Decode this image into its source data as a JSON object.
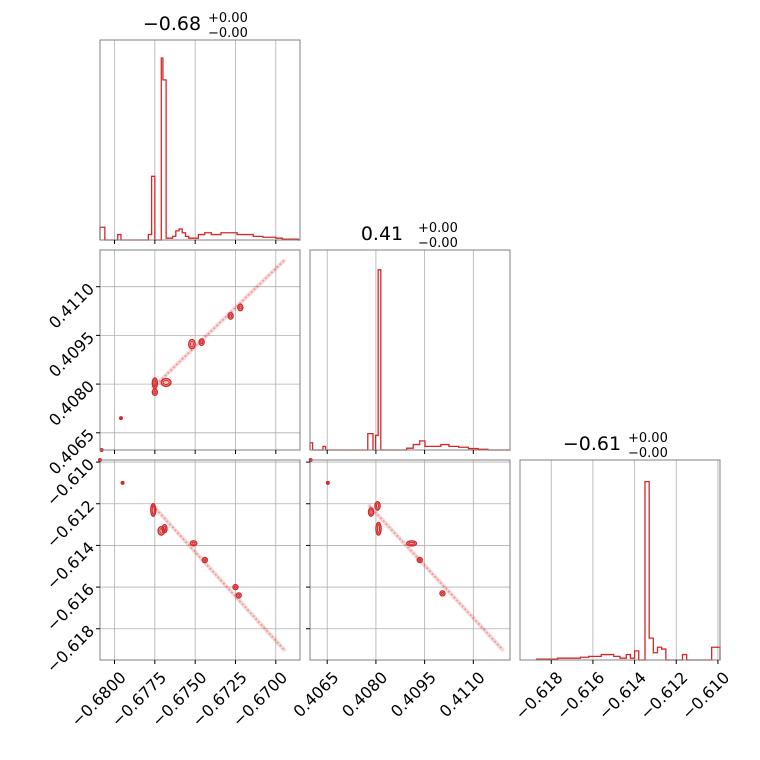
{
  "chart_data": {
    "type": "corner",
    "color": "#d62728",
    "parameters": [
      {
        "title": {
          "median": "−0.68",
          "plus": "+0.00",
          "minus": "−0.00"
        },
        "range": [
          -0.6809,
          -0.6685
        ],
        "ticks": [
          -0.68,
          -0.6775,
          -0.675,
          -0.6725,
          -0.67
        ],
        "tick_labels": [
          "−0.6800",
          "−0.6775",
          "−0.6750",
          "−0.6725",
          "−0.6700"
        ]
      },
      {
        "title": {
          "median": "0.41",
          "plus": "+0.00",
          "minus": "−0.00"
        },
        "range": [
          0.40597,
          0.41213
        ],
        "ticks": [
          0.4065,
          0.408,
          0.4095,
          0.411
        ],
        "tick_labels": [
          "0.4065",
          "0.4080",
          "0.4095",
          "0.4110"
        ]
      },
      {
        "title": {
          "median": "−0.61",
          "plus": "+0.00",
          "minus": "−0.00"
        },
        "range": [
          -0.6195,
          -0.6099
        ],
        "ticks": [
          -0.618,
          -0.616,
          -0.614,
          -0.612,
          -0.61
        ],
        "tick_labels": [
          "−0.618",
          "−0.616",
          "−0.614",
          "−0.612",
          "−0.610"
        ]
      }
    ],
    "histograms": [
      {
        "param": 0,
        "bins": [
          [
            -0.6809,
            0.07
          ],
          [
            -0.6806,
            0.0
          ],
          [
            -0.6798,
            0.03
          ],
          [
            -0.6796,
            0.0
          ],
          [
            -0.6779,
            0.03
          ],
          [
            -0.6777,
            0.35
          ],
          [
            -0.6775,
            0.0
          ],
          [
            -0.6771,
            1.0
          ],
          [
            -0.677,
            0.88
          ],
          [
            -0.6768,
            0.01
          ],
          [
            -0.6764,
            0.02
          ],
          [
            -0.6762,
            0.05
          ],
          [
            -0.676,
            0.06
          ],
          [
            -0.6758,
            0.04
          ],
          [
            -0.6756,
            0.02
          ],
          [
            -0.6754,
            0.01
          ],
          [
            -0.6748,
            0.03
          ],
          [
            -0.6744,
            0.04
          ],
          [
            -0.674,
            0.03
          ],
          [
            -0.6734,
            0.04
          ],
          [
            -0.6728,
            0.04
          ],
          [
            -0.6724,
            0.03
          ],
          [
            -0.672,
            0.03
          ],
          [
            -0.6714,
            0.02
          ],
          [
            -0.6708,
            0.015
          ],
          [
            -0.67,
            0.01
          ],
          [
            -0.6696,
            0.005
          ],
          [
            -0.6686,
            0.0
          ]
        ]
      },
      {
        "param": 1,
        "bins": [
          [
            0.40597,
            0.04
          ],
          [
            0.40605,
            0.0
          ],
          [
            0.40637,
            0.02
          ],
          [
            0.40645,
            0.0
          ],
          [
            0.40775,
            0.09
          ],
          [
            0.40791,
            0.0
          ],
          [
            0.40799,
            0.08
          ],
          [
            0.40807,
            0.99
          ],
          [
            0.40815,
            0.0
          ],
          [
            0.40895,
            0.01
          ],
          [
            0.40915,
            0.03
          ],
          [
            0.40935,
            0.05
          ],
          [
            0.40951,
            0.02
          ],
          [
            0.40975,
            0.02
          ],
          [
            0.41,
            0.03
          ],
          [
            0.41025,
            0.02
          ],
          [
            0.41055,
            0.015
          ],
          [
            0.41085,
            0.008
          ],
          [
            0.41115,
            0.004
          ],
          [
            0.41145,
            0.0
          ]
        ]
      },
      {
        "param": 2,
        "bins": [
          [
            -0.6187,
            0.005
          ],
          [
            -0.6183,
            0.005
          ],
          [
            -0.6177,
            0.01
          ],
          [
            -0.617,
            0.01
          ],
          [
            -0.6166,
            0.015
          ],
          [
            -0.6162,
            0.02
          ],
          [
            -0.6156,
            0.03
          ],
          [
            -0.615,
            0.02
          ],
          [
            -0.6147,
            0.01
          ],
          [
            -0.6144,
            0.03
          ],
          [
            -0.6142,
            0.01
          ],
          [
            -0.614,
            0.05
          ],
          [
            -0.6138,
            0.0
          ],
          [
            -0.6135,
            0.98
          ],
          [
            -0.6133,
            0.12
          ],
          [
            -0.6131,
            0.04
          ],
          [
            -0.6129,
            0.07
          ],
          [
            -0.6127,
            0.06
          ],
          [
            -0.6125,
            0.0
          ],
          [
            -0.6117,
            0.03
          ],
          [
            -0.6115,
            0.0
          ],
          [
            -0.6103,
            0.07
          ],
          [
            -0.6099,
            0.0
          ]
        ]
      }
    ],
    "scatter_2d": [
      {
        "x_param": 0,
        "y_param": 1,
        "segment": {
          "from": [
            -0.6776,
            0.4079
          ],
          "to": [
            -0.6695,
            0.4118
          ]
        },
        "contours": [
          {
            "center": [
              -0.6775,
              0.40803
            ],
            "rx": 0.0001,
            "ry": 0.00016
          },
          {
            "center": [
              -0.6775,
              0.40775
            ],
            "rx": 0.0001,
            "ry": 0.0001
          },
          {
            "center": [
              -0.6768,
              0.40805
            ],
            "rx": 0.0003,
            "ry": 0.00012
          },
          {
            "center": [
              -0.6752,
              0.40923
            ],
            "rx": 0.0002,
            "ry": 0.00014
          },
          {
            "center": [
              -0.6746,
              0.40929
            ],
            "rx": 0.0001,
            "ry": 0.0001
          },
          {
            "center": [
              -0.6728,
              0.4101
            ],
            "rx": 0.0001,
            "ry": 0.0001
          },
          {
            "center": [
              -0.6722,
              0.41036
            ],
            "rx": 0.0001,
            "ry": 0.0001
          }
        ],
        "points": [
          [
            -0.6808,
            0.40597
          ],
          [
            -0.6796,
            0.40695
          ]
        ]
      },
      {
        "x_param": 0,
        "y_param": 2,
        "segment": {
          "from": [
            -0.6776,
            -0.6121
          ],
          "to": [
            -0.6695,
            -0.619
          ]
        },
        "contours": [
          {
            "center": [
              -0.6776,
              -0.6123
            ],
            "rx": 0.0001,
            "ry": 0.0003
          },
          {
            "center": [
              -0.6771,
              -0.6133
            ],
            "rx": 0.0002,
            "ry": 0.0002
          },
          {
            "center": [
              -0.6769,
              -0.6132
            ],
            "rx": 0.0001,
            "ry": 0.0002
          },
          {
            "center": [
              -0.6751,
              -0.6139
            ],
            "rx": 0.0002,
            "ry": 0.0001
          },
          {
            "center": [
              -0.6744,
              -0.6147
            ],
            "rx": 0.0001,
            "ry": 0.0001
          },
          {
            "center": [
              -0.6725,
              -0.616
            ],
            "rx": 0.0001,
            "ry": 0.0001
          },
          {
            "center": [
              -0.6723,
              -0.6164
            ],
            "rx": 0.0001,
            "ry": 0.0001
          }
        ],
        "points": [
          [
            -0.6809,
            -0.6099
          ],
          [
            -0.6795,
            -0.611
          ]
        ]
      },
      {
        "x_param": 1,
        "y_param": 2,
        "segment": {
          "from": [
            0.4078,
            -0.6121
          ],
          "to": [
            0.4119,
            -0.619
          ]
        },
        "contours": [
          {
            "center": [
              0.40805,
              -0.6121
            ],
            "rx": 8e-05,
            "ry": 0.0002
          },
          {
            "center": [
              0.40785,
              -0.6124
            ],
            "rx": 6e-05,
            "ry": 0.0002
          },
          {
            "center": [
              0.40808,
              -0.6132
            ],
            "rx": 8e-05,
            "ry": 0.0003
          },
          {
            "center": [
              0.4091,
              -0.6139
            ],
            "rx": 0.00015,
            "ry": 0.0001
          },
          {
            "center": [
              0.40935,
              -0.6147
            ],
            "rx": 5e-05,
            "ry": 0.0001
          },
          {
            "center": [
              0.41005,
              -0.6163
            ],
            "rx": 5e-05,
            "ry": 0.0001
          }
        ],
        "points": [
          [
            0.40599,
            -0.6099
          ],
          [
            0.40652,
            -0.611
          ]
        ]
      }
    ]
  }
}
